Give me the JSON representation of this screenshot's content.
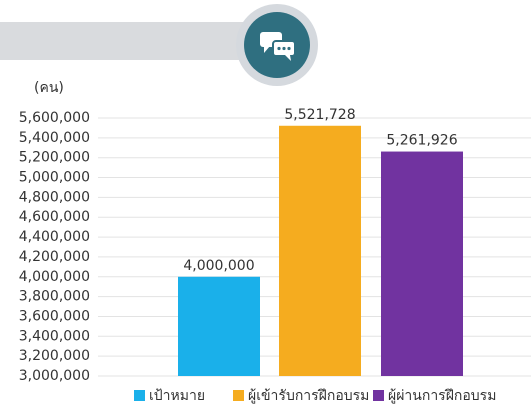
{
  "chart_data": {
    "type": "bar",
    "ylabel": "(คน)",
    "categories": [
      "เป้าหมาย",
      "ผู้เข้ารับการฝึกอบรม",
      "ผู้ผ่านการฝึกอบรม"
    ],
    "values": [
      4000000,
      5521728,
      5261926
    ],
    "value_labels": [
      "4,000,000",
      "5,521,728",
      "5,261,926"
    ],
    "colors": [
      "#1ab0ea",
      "#f5ac1f",
      "#7133a0"
    ],
    "ylim": [
      3000000,
      5600000
    ],
    "yticks": [
      {
        "value": 3000000,
        "label": "3,000,000"
      },
      {
        "value": 3200000,
        "label": "3,200,000"
      },
      {
        "value": 3400000,
        "label": "3,400,000"
      },
      {
        "value": 3600000,
        "label": "3,600,000"
      },
      {
        "value": 3800000,
        "label": "3,800,000"
      },
      {
        "value": 4000000,
        "label": "4,000,000"
      },
      {
        "value": 4200000,
        "label": "4,200,000"
      },
      {
        "value": 4400000,
        "label": "4,400,000"
      },
      {
        "value": 4600000,
        "label": "4,600,000"
      },
      {
        "value": 4800000,
        "label": "4,800,000"
      },
      {
        "value": 5000000,
        "label": "5,000,000"
      },
      {
        "value": 5200000,
        "label": "5,200,000"
      },
      {
        "value": 5400000,
        "label": "5,400,000"
      },
      {
        "value": 5600000,
        "label": "5,600,000"
      }
    ],
    "grid": true
  }
}
